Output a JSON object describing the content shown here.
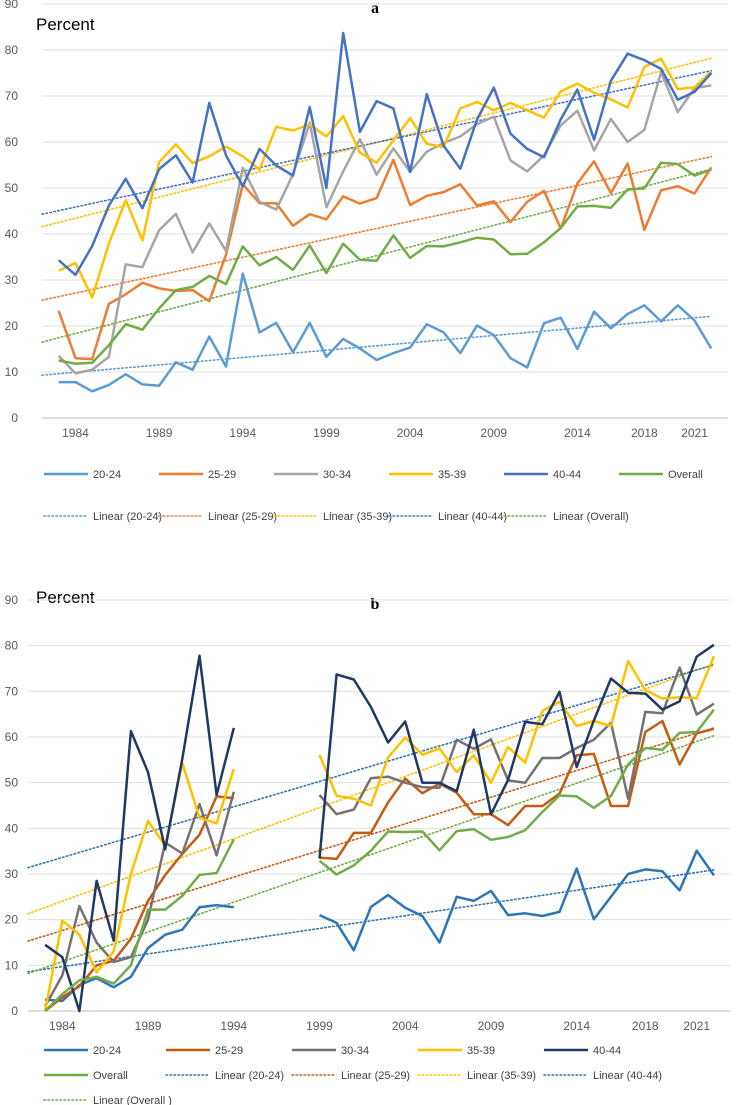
{
  "chart_data": [
    {
      "type": "line",
      "title": "a",
      "ylabel": "Percent",
      "ylim": [
        0,
        90
      ],
      "yticks": [
        0,
        10,
        20,
        30,
        40,
        50,
        60,
        70,
        80,
        90
      ],
      "xticks": [
        1984,
        1989,
        1994,
        1999,
        2004,
        2009,
        2014,
        2018,
        2021
      ],
      "x": [
        1983,
        1984,
        1985,
        1986,
        1987,
        1988,
        1989,
        1990,
        1991,
        1992,
        1993,
        1994,
        1995,
        1996,
        1997,
        1998,
        1999,
        2000,
        2001,
        2002,
        2003,
        2004,
        2005,
        2006,
        2007,
        2008,
        2009,
        2010,
        2011,
        2012,
        2013,
        2014,
        2015,
        2016,
        2017,
        2018,
        2019,
        2020,
        2021,
        2022
      ],
      "series": [
        {
          "name": "20-24",
          "color": "#5b9bd5",
          "values": [
            7.8,
            7.8,
            5.8,
            7.2,
            9.5,
            7.3,
            7,
            12.1,
            10.5,
            17.7,
            11.2,
            31.4,
            18.6,
            20.7,
            14.3,
            20.7,
            13.3,
            17.2,
            15.1,
            12.6,
            14.1,
            15.3,
            20.4,
            18.6,
            14.1,
            20.1,
            18,
            13,
            11,
            20.6,
            21.8,
            15,
            23.1,
            19.5,
            22.6,
            24.5,
            21,
            24.5,
            21.2,
            15.1
          ]
        },
        {
          "name": "25-29",
          "color": "#ed7d31",
          "values": [
            23.3,
            13,
            12.8,
            24.8,
            26.9,
            29.4,
            28.2,
            27.6,
            27.8,
            25.4,
            35.5,
            50.8,
            46.7,
            46.7,
            41.8,
            44.3,
            43.2,
            48.2,
            46.6,
            47.8,
            56.1,
            46.3,
            48.3,
            49.1,
            50.8,
            46.2,
            47.1,
            42.6,
            47,
            49.4,
            41.2,
            51,
            55.8,
            48.9,
            55.3,
            40.9,
            49.5,
            50.4,
            48.8,
            54.5
          ]
        },
        {
          "name": "30-34",
          "color": "#a5a5a5",
          "values": [
            13.5,
            9.7,
            10.5,
            13.3,
            33.4,
            32.8,
            40.8,
            44.4,
            36,
            42.3,
            36.3,
            54.4,
            47,
            45.3,
            53,
            64.2,
            45.8,
            53.6,
            60.6,
            52.9,
            58.6,
            53.5,
            57.9,
            59.8,
            61.2,
            63.9,
            65.5,
            56,
            53.6,
            57.1,
            63.6,
            66.8,
            58.2,
            65,
            60,
            62.6,
            75.2,
            66.5,
            71.7,
            72.3
          ]
        },
        {
          "name": "35-39",
          "color": "#ffc000",
          "values": [
            32,
            33.7,
            26.2,
            37.9,
            47.4,
            38.6,
            55.6,
            59.5,
            55.4,
            56.9,
            59,
            56.9,
            54,
            63.3,
            62.5,
            63.8,
            61.2,
            65.6,
            57.7,
            55.5,
            60.4,
            65.2,
            59.6,
            58.9,
            67.3,
            68.7,
            66.9,
            68.5,
            66.9,
            65.3,
            71,
            72.7,
            70.7,
            69.3,
            67.5,
            76.3,
            78.1,
            71.5,
            71.9,
            75.3
          ]
        },
        {
          "name": "40-44",
          "color": "#4472c4",
          "values": [
            34.3,
            31.1,
            37.4,
            46.2,
            52,
            45.6,
            54.1,
            57.1,
            51.2,
            68.5,
            57.1,
            50.4,
            58.5,
            54.9,
            52.7,
            67.6,
            50,
            83.7,
            62.2,
            68.9,
            67.3,
            53.5,
            70.4,
            59.2,
            54.2,
            64.9,
            71.8,
            61.8,
            58.5,
            56.7,
            64.9,
            71.4,
            60.5,
            73.3,
            79.2,
            77.8,
            75.9,
            69.2,
            70.9,
            75
          ]
        },
        {
          "name": "Overall",
          "color": "#70ad47",
          "values": [
            12.5,
            11.8,
            12,
            15.8,
            20.4,
            19.2,
            23.8,
            27.8,
            28.5,
            30.9,
            29.1,
            37.3,
            33.2,
            35,
            32.2,
            37.5,
            31.5,
            37.9,
            34.4,
            34.2,
            39.7,
            34.8,
            37.4,
            37.3,
            38.2,
            39.2,
            38.8,
            35.6,
            35.7,
            38.2,
            41.3,
            46,
            46.1,
            45.7,
            49.7,
            49.9,
            55.5,
            55.2,
            52.7,
            54
          ]
        }
      ],
      "trendlines": [
        {
          "name": "Linear (20-24)",
          "color": "#5b9bd5",
          "from": [
            1982,
            9.3
          ],
          "to": [
            2022,
            22.1
          ]
        },
        {
          "name": "Linear (25-29)",
          "color": "#ed7d31",
          "from": [
            1982,
            25.6
          ],
          "to": [
            2022,
            56.8
          ]
        },
        {
          "name": "Linear (35-39)",
          "color": "#ffc000",
          "from": [
            1982,
            41.6
          ],
          "to": [
            2022,
            78.2
          ]
        },
        {
          "name": "Linear (40-44)",
          "color": "#4472c4",
          "from": [
            1982,
            44.3
          ],
          "to": [
            2022,
            75.5
          ]
        },
        {
          "name": "Linear (Overall)",
          "color": "#70ad47",
          "from": [
            1982,
            16.5
          ],
          "to": [
            2022,
            54.1
          ]
        }
      ]
    },
    {
      "type": "line",
      "title": "b",
      "ylabel": "Percent",
      "ylim": [
        0,
        90
      ],
      "yticks": [
        0,
        10,
        20,
        30,
        40,
        50,
        60,
        70,
        80,
        90
      ],
      "xticks": [
        1984,
        1989,
        1994,
        1999,
        2004,
        2009,
        2014,
        2018,
        2021
      ],
      "x": [
        1983,
        1984,
        1985,
        1986,
        1987,
        1988,
        1989,
        1990,
        1991,
        1992,
        1993,
        1994,
        1995,
        1996,
        1997,
        1998,
        1999,
        2000,
        2001,
        2002,
        2003,
        2004,
        2005,
        2006,
        2007,
        2008,
        2009,
        2010,
        2011,
        2012,
        2013,
        2014,
        2015,
        2016,
        2017,
        2018,
        2019,
        2020,
        2021,
        2022
      ],
      "series": [
        {
          "name": "20-24",
          "color": "#2e75b6",
          "values": [
            2.5,
            2.2,
            5.7,
            7.2,
            5.2,
            7.5,
            13.8,
            16.7,
            17.8,
            22.7,
            23.2,
            22.7,
            null,
            null,
            null,
            null,
            21,
            19.3,
            13.3,
            22.8,
            25.4,
            22.6,
            20.8,
            15,
            25,
            24.1,
            26.3,
            21,
            21.4,
            20.8,
            21.7,
            31.2,
            20.1,
            25,
            30,
            31,
            30.6,
            26.4,
            35.1,
            29.7
          ]
        },
        {
          "name": "25-29",
          "color": "#c55a11",
          "values": [
            0,
            3,
            5.4,
            10,
            11,
            15.8,
            24.1,
            29.8,
            34.4,
            38.6,
            47,
            46.6,
            null,
            null,
            null,
            null,
            33.6,
            33.3,
            39,
            39,
            45.7,
            50.9,
            47.7,
            49.8,
            47.8,
            43.1,
            43.1,
            40.7,
            44.9,
            44.9,
            47.6,
            56,
            56.3,
            44.9,
            44.9,
            61.1,
            63.5,
            54,
            60.8,
            61.8
          ]
        },
        {
          "name": "30-34",
          "color": "#767171",
          "values": [
            1,
            7.8,
            23,
            15,
            10.7,
            11.8,
            20,
            36.9,
            34.5,
            45.3,
            34.1,
            48,
            null,
            null,
            null,
            null,
            47.3,
            43.1,
            44.1,
            51,
            51.3,
            50,
            49,
            48.9,
            59.4,
            57.4,
            59.5,
            50.5,
            50,
            55.4,
            55.4,
            57.6,
            59.4,
            63.1,
            46.5,
            65.5,
            65.2,
            75.2,
            64.9,
            67.3
          ]
        },
        {
          "name": "35-39",
          "color": "#ffc000",
          "values": [
            0,
            19.8,
            16.7,
            8.5,
            13,
            30,
            41.6,
            36.2,
            54.3,
            42.3,
            41.1,
            53,
            null,
            null,
            null,
            null,
            56.1,
            47.1,
            46.5,
            45,
            55.5,
            59.9,
            56.1,
            57.5,
            52.3,
            56,
            50,
            57.8,
            54.4,
            65.7,
            67.7,
            62.4,
            63.5,
            62.4,
            76.6,
            70.3,
            68.4,
            68.7,
            68.5,
            77.7
          ]
        },
        {
          "name": "40-44",
          "color": "#1f3864",
          "values": [
            14.5,
            11.8,
            0,
            28.5,
            15.4,
            61.3,
            52.3,
            35.4,
            55.2,
            77.8,
            47.3,
            62,
            null,
            null,
            null,
            null,
            33.4,
            73.7,
            72.6,
            66.6,
            58.8,
            63.4,
            50,
            50,
            48.1,
            61.6,
            43.1,
            50.6,
            63.3,
            62.8,
            69.9,
            53.4,
            63.6,
            72.8,
            69.7,
            69.5,
            66,
            67.8,
            77.6,
            80.2
          ]
        },
        {
          "name": "Overall",
          "color": "#70ad47",
          "values": [
            0,
            3.7,
            6.7,
            7.5,
            6,
            10,
            22.2,
            22.2,
            25.2,
            29.8,
            30.2,
            37.6,
            null,
            null,
            null,
            null,
            32.9,
            29.9,
            31.9,
            35.1,
            39.3,
            39.2,
            39.3,
            35.2,
            39.4,
            39.8,
            37.5,
            38.1,
            39.6,
            43.6,
            47.2,
            47,
            44.5,
            47.1,
            54,
            57.6,
            57.2,
            60.9,
            61.1,
            66
          ]
        }
      ],
      "trendlines": [
        {
          "name": "Linear (20-24)",
          "color": "#2e75b6",
          "from": [
            1982,
            8.6
          ],
          "to": [
            2022,
            30.9
          ]
        },
        {
          "name": "Linear (25-29)",
          "color": "#c55a11",
          "from": [
            1982,
            15.3
          ],
          "to": [
            2022,
            62
          ]
        },
        {
          "name": "Linear (35-39)",
          "color": "#ffc000",
          "from": [
            1982,
            21.3
          ],
          "to": [
            2022,
            76
          ]
        },
        {
          "name": "Linear (40-44)",
          "color": "#2e75b6",
          "from": [
            1982,
            31.4
          ],
          "to": [
            2022,
            75.8
          ]
        },
        {
          "name": "Linear (Overall )",
          "color": "#70ad47",
          "from": [
            1982,
            8.2
          ],
          "to": [
            2022,
            60.3
          ]
        }
      ]
    }
  ]
}
